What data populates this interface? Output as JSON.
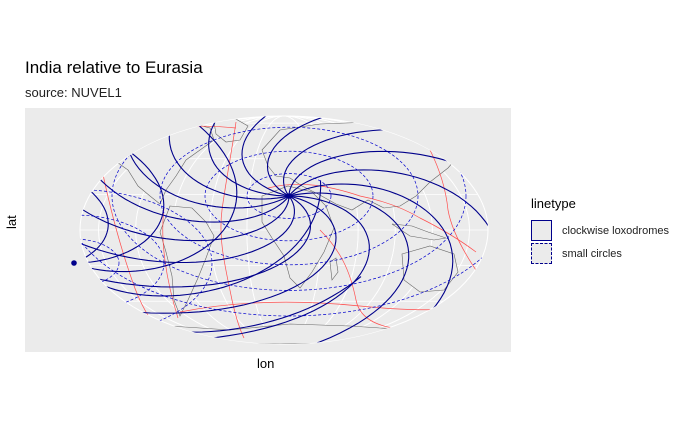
{
  "chart_data": {
    "type": "map",
    "title": "India relative to Eurasia",
    "subtitle": "source: NUVEL1",
    "xlabel": "lon",
    "ylabel": "lat",
    "projection": "Robinson (world)",
    "pole_of_rotation": {
      "lon": 17.7,
      "lat": 29.6
    },
    "antipole": {
      "lon": -162.3,
      "lat": -29.6
    },
    "legend": {
      "title": "linetype",
      "placement": "right",
      "entries": [
        "clockwise loxodromes",
        "small circles"
      ]
    },
    "series": [
      {
        "name": "clockwise loxodromes",
        "linestyle": "solid",
        "color": "#00008b"
      },
      {
        "name": "small circles",
        "linestyle": "dashed",
        "color": "#0000cd"
      },
      {
        "name": "plate boundaries",
        "linestyle": "solid",
        "color": "#ff4d4d"
      },
      {
        "name": "coastlines",
        "linestyle": "solid",
        "color": "#555555"
      }
    ],
    "grid": true,
    "panel_background": "#ebebeb"
  }
}
